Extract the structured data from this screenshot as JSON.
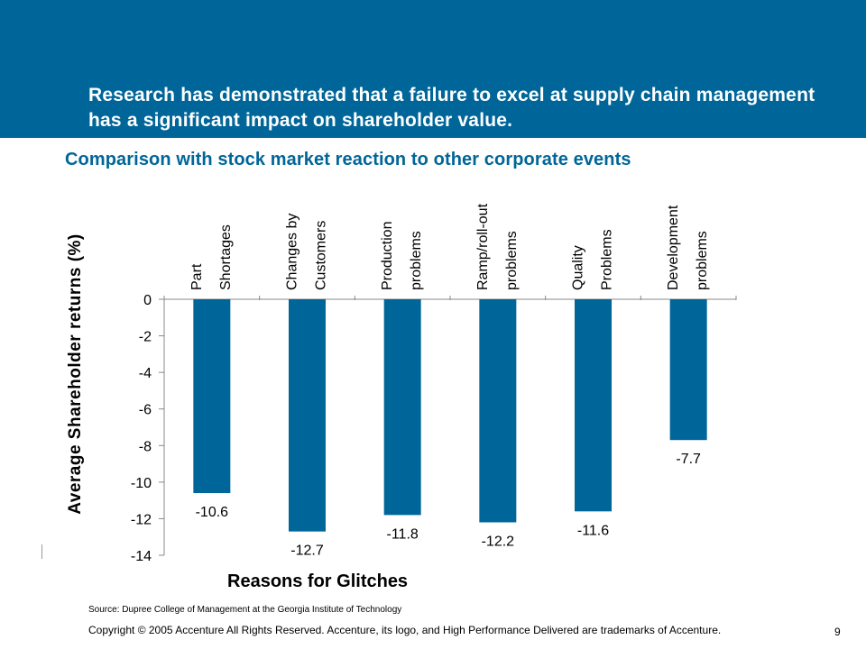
{
  "header": {
    "headline": "Research has demonstrated that a failure to excel at supply chain management has a significant impact on shareholder value.",
    "banner_color": "#006699"
  },
  "chart_title": "Comparison with stock market reaction to other corporate events",
  "chart_data": {
    "type": "bar",
    "categories": [
      [
        "Part",
        "Shortages"
      ],
      [
        "Changes by",
        "Customers"
      ],
      [
        "Production",
        "problems"
      ],
      [
        "Ramp/roll-out",
        "problems"
      ],
      [
        "Quality",
        "Problems"
      ],
      [
        "Development",
        "problems"
      ]
    ],
    "values": [
      -10.6,
      -12.7,
      -11.8,
      -12.2,
      -11.6,
      -7.7
    ],
    "data_labels": [
      "-10.6",
      "-12.7",
      "-11.8",
      "-12.2",
      "-11.6",
      "-7.7"
    ],
    "ylabel": "Average Shareholder returns (%)",
    "xlabel": "Reasons for Glitches",
    "ylim": [
      -14,
      0
    ],
    "yticks": [
      0,
      -2,
      -4,
      -6,
      -8,
      -10,
      -12,
      -14
    ],
    "category_labels_position": "top",
    "bar_color": "#006699"
  },
  "footer": {
    "source": "Source: Dupree College of Management at the Georgia Institute of Technology",
    "copyright": "Copyright © 2005 Accenture All Rights Reserved. Accenture, its logo, and High Performance Delivered are trademarks of Accenture.",
    "page_number": "9"
  }
}
